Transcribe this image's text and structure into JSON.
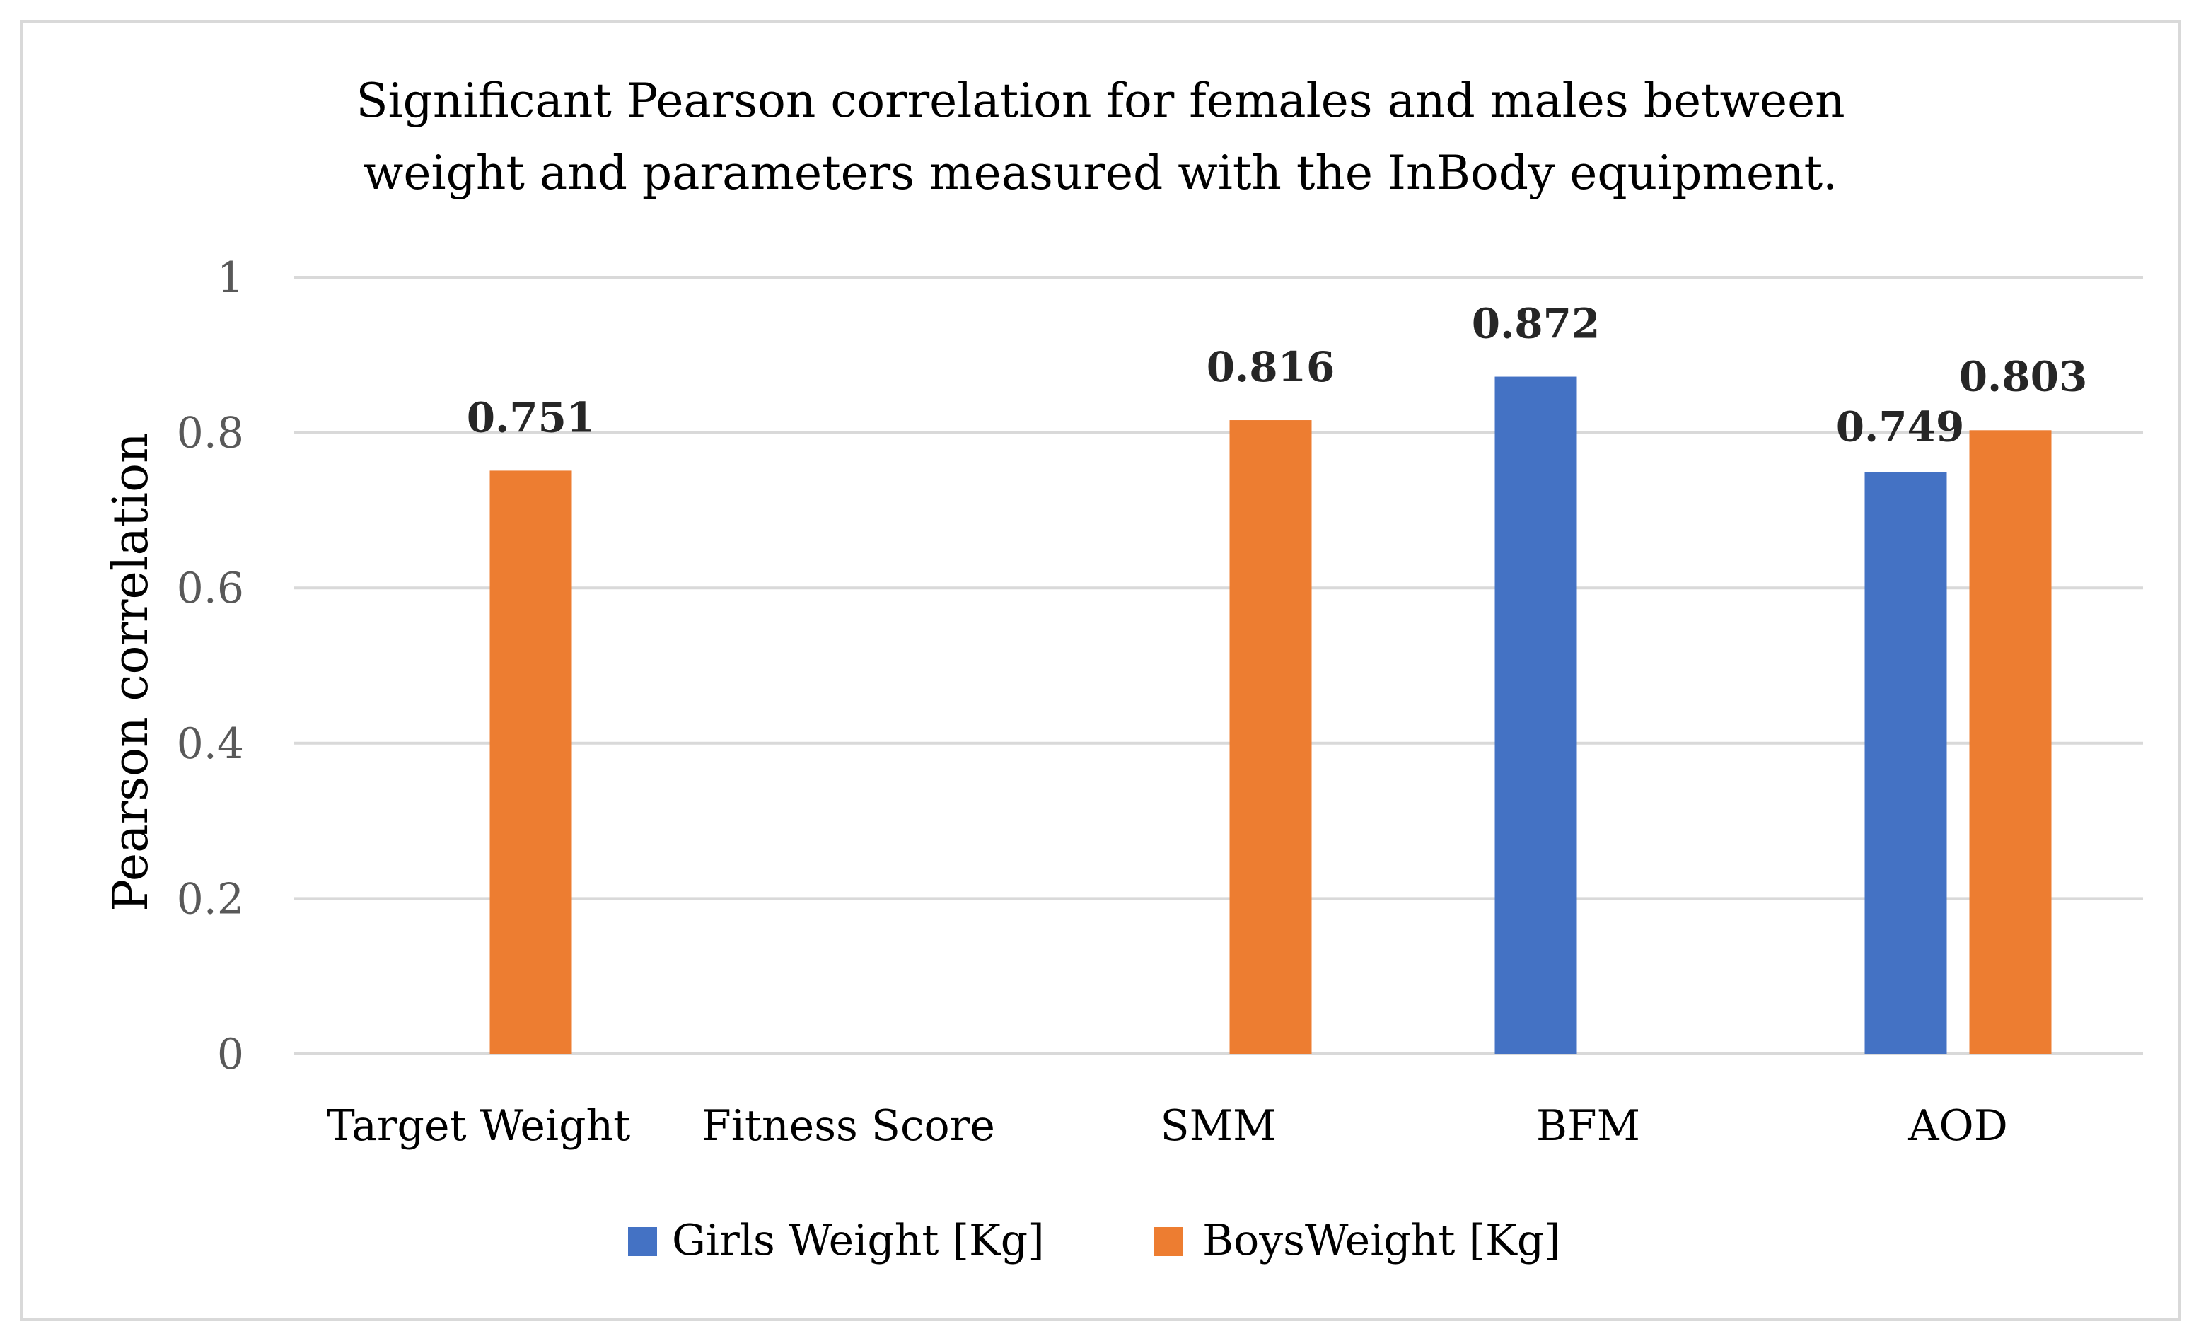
{
  "chart_data": {
    "type": "bar",
    "title_lines": [
      "Significant Pearson correlation for females and males between",
      "weight and parameters measured with the InBody equipment."
    ],
    "xlabel": "",
    "ylabel": "Pearson correlation",
    "ylim": [
      0,
      1
    ],
    "y_ticks": [
      0,
      0.2,
      0.4,
      0.6,
      0.8,
      1
    ],
    "y_tick_labels": [
      "0",
      "0.2",
      "0.4",
      "0.6",
      "0.8",
      "1"
    ],
    "grid": true,
    "legend_position": "bottom",
    "categories": [
      "Target Weight",
      "Fitness Score",
      "SMM",
      "BFM",
      "AOD"
    ],
    "series": [
      {
        "name": "Girls Weight [Kg]",
        "color": "#4472c4",
        "values": [
          null,
          null,
          null,
          0.872,
          0.749
        ],
        "labels": [
          "",
          "",
          "",
          "0.872",
          "0.749"
        ]
      },
      {
        "name": "BoysWeight [Kg]",
        "color": "#ed7d31",
        "values": [
          0.751,
          null,
          0.816,
          null,
          0.803
        ],
        "labels": [
          "0.751",
          "",
          "0.816",
          "",
          "0.803"
        ]
      }
    ]
  }
}
